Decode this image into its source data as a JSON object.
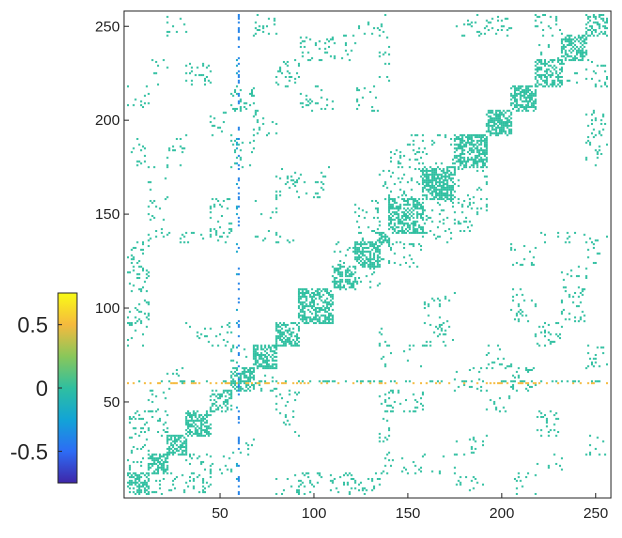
{
  "chart_data": {
    "type": "heatmap",
    "title": "",
    "xlabel": "",
    "ylabel": "",
    "xlim": [
      1,
      256
    ],
    "ylim": [
      1,
      256
    ],
    "xticks": [
      50,
      100,
      150,
      200,
      250
    ],
    "yticks": [
      50,
      100,
      150,
      200,
      250
    ],
    "xtick_labels": [
      "50",
      "100",
      "150",
      "200",
      "250"
    ],
    "ytick_labels": [
      "50",
      "100",
      "150",
      "200",
      "250"
    ],
    "grid": false,
    "colormap": "parula",
    "colormap_stops": [
      "#3e26a8",
      "#2d6cf5",
      "#12a4d6",
      "#2fbfa0",
      "#89c75a",
      "#f5ba3e",
      "#f9fb15"
    ],
    "clim": [
      -0.75,
      0.75
    ],
    "matrix_size": 256,
    "typical_value": 0.0,
    "colorbar": {
      "location": "left",
      "ticks": [
        0.5,
        0,
        -0.5
      ],
      "tick_labels": [
        "0.5",
        "0",
        "-0.5"
      ]
    },
    "diagonal_blocks": [
      {
        "from": 1,
        "to": 12
      },
      {
        "from": 12,
        "to": 22
      },
      {
        "from": 22,
        "to": 32
      },
      {
        "from": 32,
        "to": 45
      },
      {
        "from": 45,
        "to": 56
      },
      {
        "from": 56,
        "to": 68
      },
      {
        "from": 68,
        "to": 80
      },
      {
        "from": 80,
        "to": 92
      },
      {
        "from": 92,
        "to": 110
      },
      {
        "from": 110,
        "to": 122
      },
      {
        "from": 122,
        "to": 135
      },
      {
        "from": 135,
        "to": 140
      },
      {
        "from": 140,
        "to": 158
      },
      {
        "from": 158,
        "to": 175
      },
      {
        "from": 175,
        "to": 192
      },
      {
        "from": 192,
        "to": 205
      },
      {
        "from": 205,
        "to": 218
      },
      {
        "from": 218,
        "to": 232
      },
      {
        "from": 232,
        "to": 245
      },
      {
        "from": 245,
        "to": 256
      }
    ],
    "negative_column": {
      "index": 60,
      "value": -0.4
    },
    "positive_row": {
      "index": 60,
      "value": 0.5
    }
  }
}
